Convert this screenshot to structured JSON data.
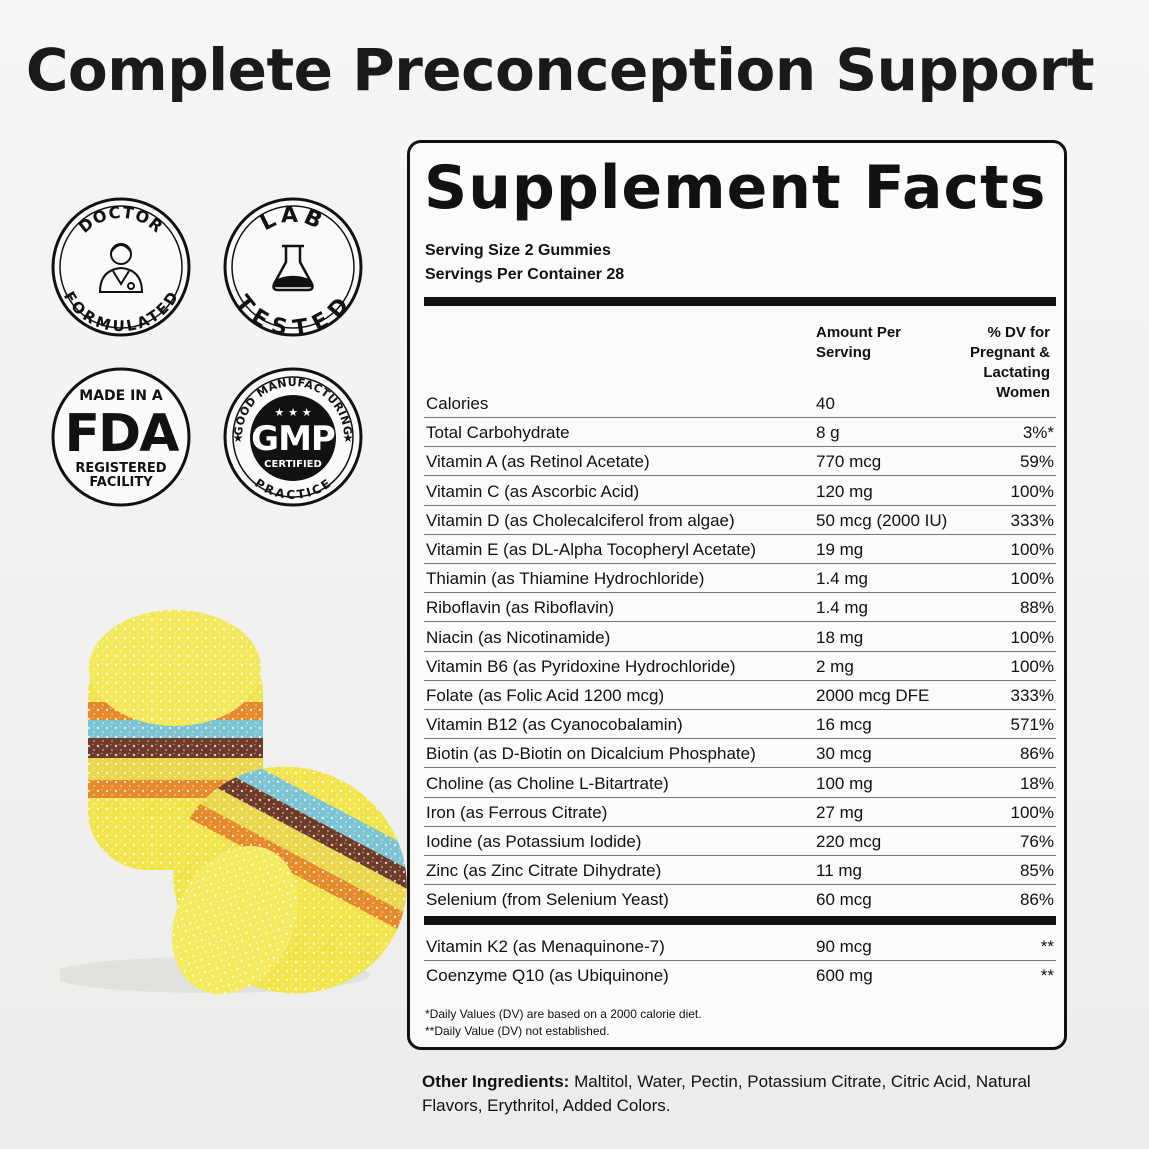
{
  "headline": "Complete Preconception Support",
  "badges": {
    "doctor": {
      "top": "DOCTOR",
      "bottom": "FORMULATED",
      "icon": "doctor-icon"
    },
    "lab": {
      "top": "LAB",
      "bottom": "TESTED",
      "icon": "flask-icon"
    },
    "fda": {
      "line1": "MADE IN A",
      "big": "FDA",
      "line2": "REGISTERED",
      "line3": "FACILITY"
    },
    "gmp": {
      "top": "GOOD MANUFACTURING",
      "big": "GMP",
      "sub": "CERTIFIED",
      "bottom": "PRACTICE",
      "stars": "★ ★ ★"
    }
  },
  "facts": {
    "title": "Supplement Facts",
    "serving_size": "Serving Size 2 Gummies",
    "servings_per": "Servings Per Container 28",
    "col_amount": [
      "Amount Per",
      "Serving"
    ],
    "col_dv": [
      "% DV for",
      "Pregnant &",
      "Lactating",
      "Women"
    ],
    "rows": [
      {
        "name": "Calories",
        "amount": "40",
        "dv": ""
      },
      {
        "name": "Total Carbohydrate",
        "amount": "8 g",
        "dv": "3%*"
      },
      {
        "name": "Vitamin A (as Retinol Acetate)",
        "amount": "770 mcg",
        "dv": "59%"
      },
      {
        "name": "Vitamin C (as Ascorbic Acid)",
        "amount": "120 mg",
        "dv": "100%"
      },
      {
        "name": "Vitamin D (as Cholecalciferol from algae)",
        "amount": "50 mcg (2000 IU)",
        "dv": "333%"
      },
      {
        "name": "Vitamin E (as DL-Alpha Tocopheryl Acetate)",
        "amount": "19 mg",
        "dv": "100%"
      },
      {
        "name": "Thiamin (as Thiamine Hydrochloride)",
        "amount": "1.4 mg",
        "dv": "100%"
      },
      {
        "name": "Riboflavin (as Riboflavin)",
        "amount": "1.4 mg",
        "dv": "88%"
      },
      {
        "name": "Niacin (as Nicotinamide)",
        "amount": "18 mg",
        "dv": "100%"
      },
      {
        "name": "Vitamin B6 (as Pyridoxine Hydrochloride)",
        "amount": "2 mg",
        "dv": "100%"
      },
      {
        "name": "Folate (as Folic Acid 1200 mcg)",
        "amount": "2000 mcg DFE",
        "dv": "333%"
      },
      {
        "name": "Vitamin B12 (as Cyanocobalamin)",
        "amount": "16 mcg",
        "dv": "571%"
      },
      {
        "name": "Biotin (as D-Biotin on Dicalcium Phosphate)",
        "amount": "30 mcg",
        "dv": "86%"
      },
      {
        "name": "Choline (as Choline L-Bitartrate)",
        "amount": "100 mg",
        "dv": "18%"
      },
      {
        "name": "Iron (as Ferrous Citrate)",
        "amount": "27 mg",
        "dv": "100%"
      },
      {
        "name": "Iodine (as Potassium Iodide)",
        "amount": "220 mcg",
        "dv": "76%"
      },
      {
        "name": "Zinc (as Zinc Citrate Dihydrate)",
        "amount": "11 mg",
        "dv": "85%"
      },
      {
        "name": "Selenium (from Selenium Yeast)",
        "amount": "60 mcg",
        "dv": "86%"
      }
    ],
    "extra_rows": [
      {
        "name": "Vitamin K2 (as Menaquinone-7)",
        "amount": "90 mcg",
        "dv": "**"
      },
      {
        "name": "Coenzyme Q10 (as Ubiquinone)",
        "amount": "600 mg",
        "dv": "**"
      }
    ],
    "footnotes": [
      "*Daily Values (DV) are based on a 2000 calorie diet.",
      "**Daily Value (DV) not established."
    ]
  },
  "other_ingredients": {
    "label": "Other Ingredients:",
    "text": " Maltitol, Water, Pectin, Potassium Citrate, Citric Acid, Natural Flavors, Erythritol, Added Colors."
  },
  "colors": {
    "ink": "#111111",
    "panel": "#fbfbf9",
    "gummy_yellow": "#f2e64a",
    "gummy_blue": "#7cc4d4",
    "gummy_orange": "#e58a2b",
    "gummy_brown": "#6e3a2a"
  }
}
